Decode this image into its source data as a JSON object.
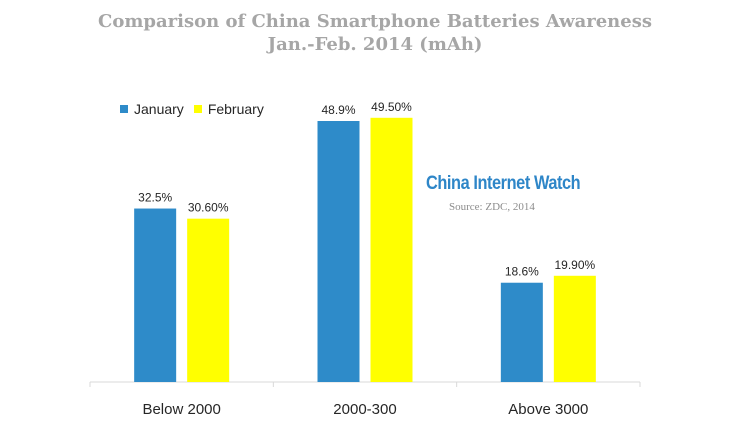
{
  "chart_data": {
    "type": "bar",
    "title": "Comparison of China Smartphone Batteries Awareness",
    "subtitle": "Jan.-Feb. 2014 (mAh)",
    "categories": [
      "Below 2000",
      "2000-300",
      "Above 3000"
    ],
    "series": [
      {
        "name": "January",
        "color": "#2e8bc9",
        "values": [
          32.5,
          48.9,
          18.6
        ],
        "labels": [
          "32.5%",
          "48.9%",
          "18.6%"
        ]
      },
      {
        "name": "February",
        "color": "#ffff00",
        "values": [
          30.6,
          49.5,
          19.9
        ],
        "labels": [
          "30.60%",
          "49.50%",
          "19.90%"
        ]
      }
    ],
    "ylim": [
      0,
      60
    ],
    "grid": false,
    "legend_position": "top-left"
  },
  "watermark": {
    "brand": "China Internet Watch",
    "source": "Source: ZDC, 2014"
  }
}
